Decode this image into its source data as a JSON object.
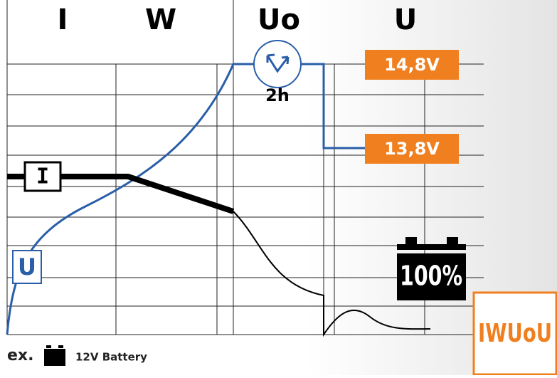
{
  "phases": [
    "I",
    "W",
    "Uo",
    "U"
  ],
  "voltages": [
    "14,8V",
    "13,8V"
  ],
  "timer": "2h",
  "curve_labels": {
    "current": "I",
    "voltage": "U"
  },
  "battery_state": "100%",
  "mode": "IWUoU",
  "footer": {
    "prefix": "ex.",
    "battery": "12V Battery"
  }
}
